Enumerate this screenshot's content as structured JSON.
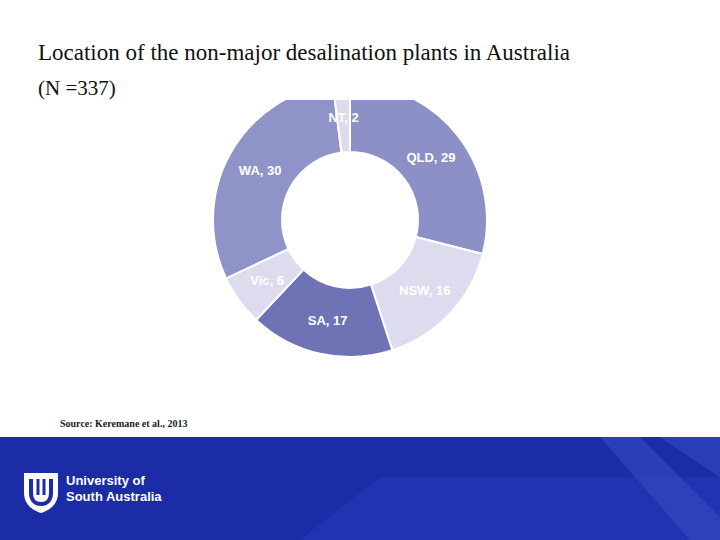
{
  "chart_data": {
    "type": "pie",
    "title": "Location of the non-major desalination plants in Australia",
    "subtitle": "(N =337)",
    "categories": [
      "QLD",
      "NSW",
      "SA",
      "Vic",
      "WA",
      "NT"
    ],
    "values": [
      29,
      16,
      17,
      6,
      30,
      2
    ],
    "colors": [
      "#8d90c7",
      "#dcdcee",
      "#6f73b6",
      "#dcdcee",
      "#9093c8",
      "#dcdcee"
    ],
    "data_labels": true,
    "source": "Source: Keremane et al., 2013"
  },
  "footer": {
    "logo_text": [
      "University of",
      "South Australia"
    ]
  }
}
